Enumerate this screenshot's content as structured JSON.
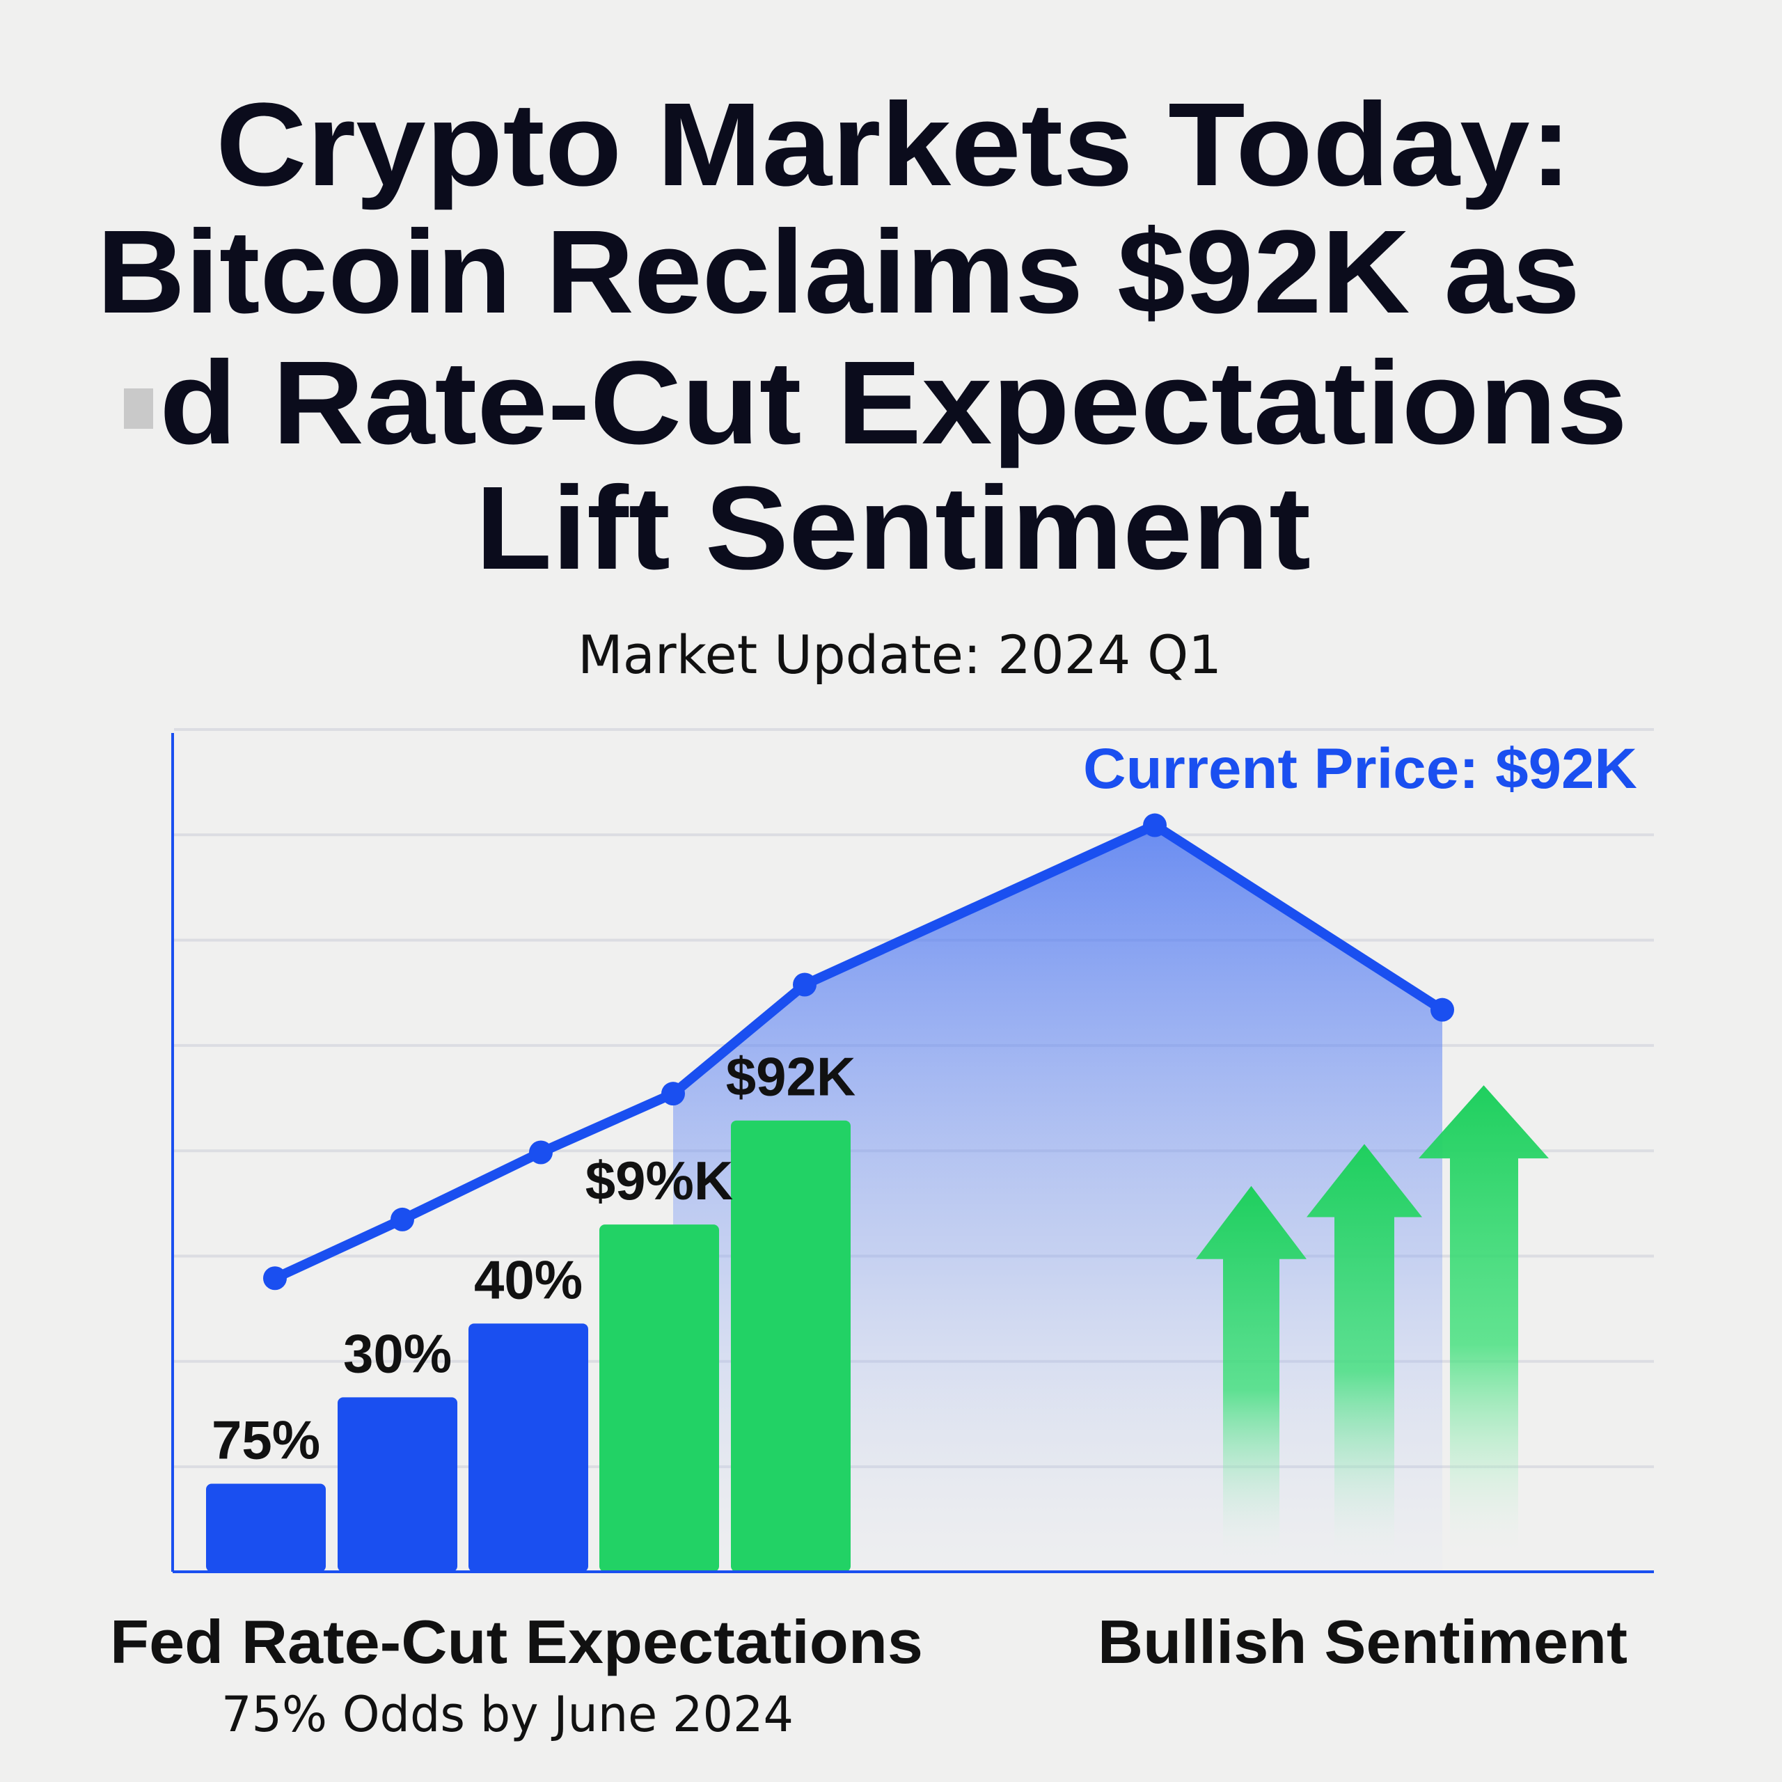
{
  "title": {
    "lines": [
      "Crypto Markets Today:",
      "Bitcoin Reclaims $92K as",
      "d Rate-Cut Expectations",
      "Lift Sentiment"
    ]
  },
  "subtitle": "Market Update: 2024 Q1",
  "colors": {
    "background": "#f0f0ef",
    "blue": "#1a4ff0",
    "green": "#22d265",
    "text": "#0b0c1c"
  },
  "chart_data": {
    "type": "bar",
    "title": "",
    "xlabel": "",
    "ylabel": "",
    "grid": true,
    "ylim": [
      0,
      1
    ],
    "bars": [
      {
        "label": "75%",
        "value": 0.105,
        "color": "blue"
      },
      {
        "label": "30%",
        "value": 0.208,
        "color": "blue"
      },
      {
        "label": "40%",
        "value": 0.296,
        "color": "blue"
      },
      {
        "label": "$9%K",
        "value": 0.414,
        "color": "green"
      },
      {
        "label": "$92K",
        "value": 0.538,
        "color": "green"
      }
    ],
    "line": {
      "values": [
        0.35,
        0.42,
        0.5,
        0.57,
        0.7,
        0.89,
        0.67
      ],
      "annotation": "Current Price: $92K"
    },
    "arrows": [
      {
        "icon": "up-arrow-icon",
        "level": 0.46
      },
      {
        "icon": "up-arrow-icon",
        "level": 0.51
      },
      {
        "icon": "up-arrow-icon",
        "level": 0.58
      }
    ]
  },
  "footer": {
    "left_title": "Fed Rate-Cut Expectations",
    "left_subtitle": "75% Odds by June 2024",
    "right_title": "Bullish Sentiment"
  }
}
